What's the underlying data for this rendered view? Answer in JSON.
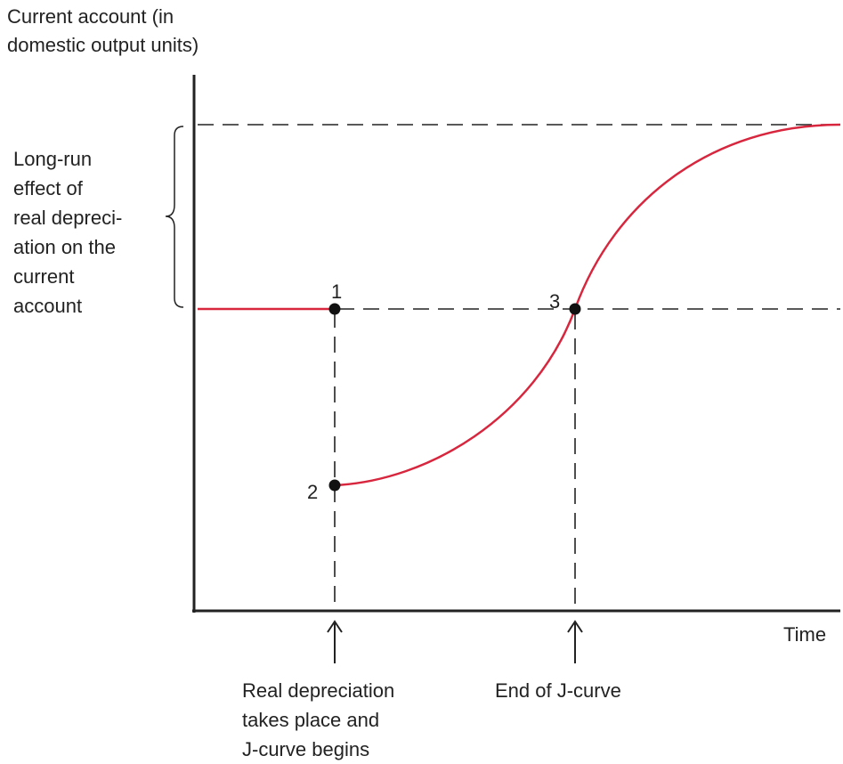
{
  "y_axis_label": [
    "Current account (in",
    "domestic output units)"
  ],
  "x_axis_label": "Time",
  "brace_label": [
    "Long-run",
    "effect of",
    "real depreci-",
    "ation on the",
    "current",
    "account"
  ],
  "points": [
    {
      "label": "1"
    },
    {
      "label": "2"
    },
    {
      "label": "3"
    }
  ],
  "annotations": [
    {
      "lines": [
        "Real depreciation",
        "takes place and",
        "J-curve begins"
      ]
    },
    {
      "lines": [
        "End of J-curve"
      ]
    }
  ]
}
